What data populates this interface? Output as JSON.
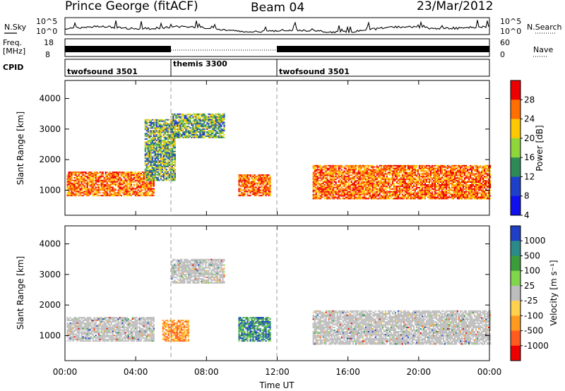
{
  "header": {
    "station": "Prince George (fitACF)",
    "beam": "Beam 04",
    "date": "23/Mar/2012"
  },
  "nsky_panel": {
    "label": "N.Sky",
    "right_label": "N.Search",
    "yticks_left": [
      "10^5",
      "10^0"
    ],
    "yticks_right": [
      "10^5",
      "10^0"
    ]
  },
  "freq_panel": {
    "label_line1": "Freq.",
    "label_line2": "[MHz]",
    "right_label": "Nave",
    "yticks_left": [
      "18",
      "8"
    ],
    "yticks_right": [
      "60",
      "0"
    ]
  },
  "cpid": {
    "label": "CPID",
    "segments": [
      {
        "name": "twofsound 3501",
        "start_h": 0,
        "end_h": 6
      },
      {
        "name": "themis 3300",
        "start_h": 6,
        "end_h": 12
      },
      {
        "name": "twofsound 3501",
        "start_h": 12,
        "end_h": 24
      }
    ]
  },
  "chart_data": [
    {
      "type": "heatmap",
      "title": "",
      "xlabel": "",
      "ylabel": "Slant Range [km]",
      "colorbar_label": "Power [dB]",
      "colorbar_ticks": [
        "28",
        "24",
        "20",
        "16",
        "12",
        "8",
        "4"
      ],
      "colors": [
        "#ee0000",
        "#ff6e00",
        "#ffc800",
        "#8ed63a",
        "#2e8b57",
        "#1e3fc9",
        "#1010ee"
      ],
      "ylim": [
        180,
        4590
      ],
      "yticks": [
        1000,
        2000,
        3000,
        4000
      ],
      "xlim_hours": [
        0,
        24
      ],
      "xticks": [
        "00:00",
        "04:00",
        "08:00",
        "12:00",
        "16:00",
        "20:00",
        "00:00"
      ],
      "regions": [
        {
          "t0": 0.1,
          "t1": 5.0,
          "r0": 800,
          "r1": 1600,
          "level": "high"
        },
        {
          "t0": 4.5,
          "t1": 6.2,
          "r0": 1300,
          "r1": 3300,
          "level": "mid"
        },
        {
          "t0": 6.0,
          "t1": 9.0,
          "r0": 2700,
          "r1": 3500,
          "level": "mid"
        },
        {
          "t0": 9.8,
          "t1": 11.6,
          "r0": 800,
          "r1": 1500,
          "level": "high"
        },
        {
          "t0": 14.0,
          "t1": 24.0,
          "r0": 700,
          "r1": 1800,
          "level": "high"
        }
      ]
    },
    {
      "type": "heatmap",
      "title": "",
      "xlabel": "Time UT",
      "ylabel": "Slant Range [km]",
      "colorbar_label": "Velocity [m s⁻¹]",
      "colorbar_ticks": [
        "1000",
        "500",
        "100",
        "25",
        "-25",
        "-100",
        "-500",
        "-1000"
      ],
      "colors": [
        "#1f3fc4",
        "#2b8a8a",
        "#3a9d3a",
        "#7fd64a",
        "#bdbdbd",
        "#ffd24d",
        "#ff9a1f",
        "#ff5a1f",
        "#ee0000"
      ],
      "ylim": [
        180,
        4590
      ],
      "yticks": [
        1000,
        2000,
        3000,
        4000
      ],
      "xlim_hours": [
        0,
        24
      ],
      "xticks": [
        "00:00",
        "04:00",
        "08:00",
        "12:00",
        "16:00",
        "20:00",
        "00:00"
      ],
      "regions": [
        {
          "t0": 0.1,
          "t1": 5.0,
          "r0": 800,
          "r1": 1600,
          "level": "ground"
        },
        {
          "t0": 5.5,
          "t1": 7.0,
          "r0": 800,
          "r1": 1500,
          "level": "away"
        },
        {
          "t0": 6.0,
          "t1": 9.0,
          "r0": 2700,
          "r1": 3500,
          "level": "ground"
        },
        {
          "t0": 9.8,
          "t1": 11.6,
          "r0": 800,
          "r1": 1600,
          "level": "toward"
        },
        {
          "t0": 14.0,
          "t1": 24.0,
          "r0": 700,
          "r1": 1800,
          "level": "ground"
        }
      ]
    }
  ]
}
